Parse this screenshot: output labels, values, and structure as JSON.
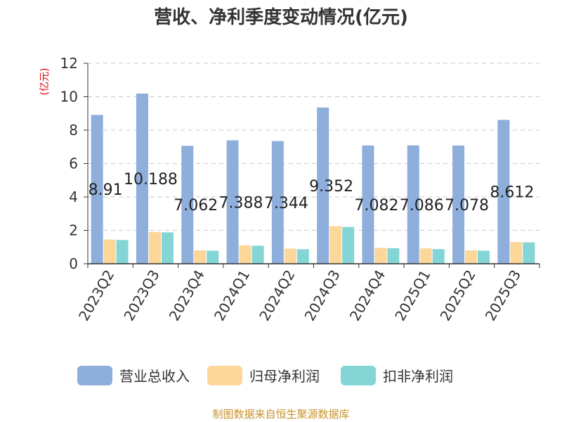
{
  "chart_data": {
    "type": "bar",
    "title": "营收、净利季度变动情况(亿元)",
    "unit_label": "(亿元)",
    "categories": [
      "2023Q2",
      "2023Q3",
      "2023Q4",
      "2024Q1",
      "2024Q2",
      "2024Q3",
      "2024Q4",
      "2025Q1",
      "2025Q2",
      "2025Q3"
    ],
    "series": [
      {
        "name": "营业总收入",
        "color": "#8eaedb",
        "values": [
          8.91,
          10.188,
          7.062,
          7.388,
          7.344,
          9.352,
          7.082,
          7.086,
          7.078,
          8.612
        ],
        "data_labels": [
          "8.91",
          "10.188",
          "7.062",
          "7.388",
          "7.344",
          "9.352",
          "7.082",
          "7.086",
          "7.078",
          "8.612"
        ]
      },
      {
        "name": "归母净利润",
        "color": "#fdd699",
        "values": [
          1.45,
          1.9,
          0.8,
          1.1,
          0.9,
          2.25,
          0.95,
          0.92,
          0.8,
          1.3
        ]
      },
      {
        "name": "扣非净利润",
        "color": "#84d5d6",
        "values": [
          1.42,
          1.88,
          0.78,
          1.08,
          0.87,
          2.2,
          0.93,
          0.88,
          0.78,
          1.28
        ]
      }
    ],
    "ylim": [
      0,
      12
    ],
    "yticks": [
      0,
      2,
      4,
      6,
      8,
      10,
      12
    ],
    "grid": true,
    "legend_position": "bottom"
  },
  "source_text": "制图数据来自恒生聚源数据库"
}
